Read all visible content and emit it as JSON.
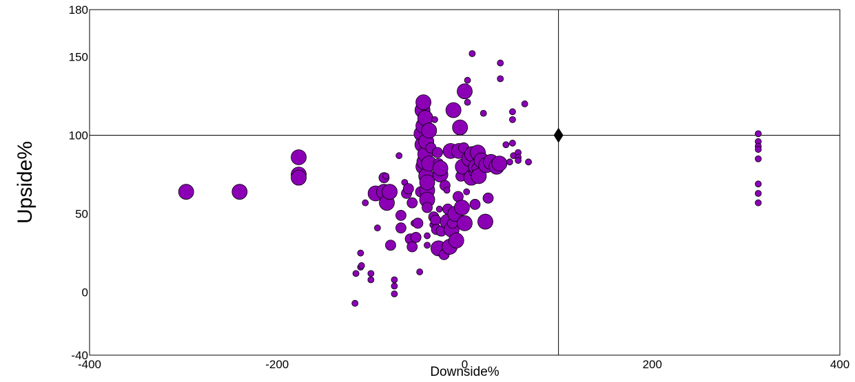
{
  "chart_data": {
    "type": "scatter",
    "xlabel": "Downside%",
    "ylabel": "Upside%",
    "xlim": [
      -400,
      400
    ],
    "ylim": [
      -40,
      180
    ],
    "xticks": [
      -400,
      -200,
      0,
      200,
      400
    ],
    "yticks": [
      -40,
      0,
      50,
      100,
      150,
      180
    ],
    "grid": false,
    "reference_lines": {
      "x": 100,
      "y": 100
    },
    "reference_marker": {
      "x": 100,
      "y": 100,
      "shape": "diamond"
    },
    "colors": {
      "point_fill": "#8b00b5",
      "point_edge": "#000000",
      "axes": "#000000",
      "marker": "#000000"
    },
    "point_fields": [
      "x",
      "y",
      "size"
    ],
    "points": [
      [
        -297,
        64,
        3
      ],
      [
        -240,
        64,
        3
      ],
      [
        -177,
        86,
        3
      ],
      [
        -177,
        75,
        3
      ],
      [
        -177,
        73,
        3
      ],
      [
        -117,
        -7,
        1
      ],
      [
        -116,
        12,
        1
      ],
      [
        -111,
        25,
        1
      ],
      [
        -111,
        16,
        1
      ],
      [
        -110,
        17,
        1
      ],
      [
        -106,
        57,
        1
      ],
      [
        -100,
        12,
        1
      ],
      [
        -100,
        8,
        1
      ],
      [
        -95,
        63,
        3
      ],
      [
        -93,
        41,
        1
      ],
      [
        -86,
        64,
        3
      ],
      [
        -86,
        73,
        2
      ],
      [
        -84,
        74,
        1
      ],
      [
        -83,
        57,
        3
      ],
      [
        -80,
        64,
        3
      ],
      [
        -79,
        30,
        2
      ],
      [
        -75,
        8,
        1
      ],
      [
        -75,
        4,
        1
      ],
      [
        -75,
        -1,
        1
      ],
      [
        -70,
        87,
        1
      ],
      [
        -68,
        49,
        2
      ],
      [
        -68,
        41,
        2
      ],
      [
        -64,
        70,
        1
      ],
      [
        -62,
        63,
        2
      ],
      [
        -60,
        66,
        2
      ],
      [
        -58,
        34,
        2
      ],
      [
        -56,
        29,
        2
      ],
      [
        -56,
        57,
        2
      ],
      [
        -54,
        44,
        1
      ],
      [
        -52,
        35,
        2
      ],
      [
        -50,
        44,
        2
      ],
      [
        -48,
        13,
        1
      ],
      [
        -47,
        64,
        2
      ],
      [
        -46,
        101,
        3
      ],
      [
        -45,
        94,
        3
      ],
      [
        -45,
        116,
        3
      ],
      [
        -44,
        80,
        3
      ],
      [
        -44,
        106,
        3
      ],
      [
        -44,
        121,
        3
      ],
      [
        -43,
        83,
        3
      ],
      [
        -42,
        111,
        3
      ],
      [
        -42,
        88,
        3
      ],
      [
        -41,
        96,
        3
      ],
      [
        -41,
        74,
        3
      ],
      [
        -40,
        65,
        3
      ],
      [
        -40,
        59,
        3
      ],
      [
        -40,
        54,
        2
      ],
      [
        -40,
        70,
        3
      ],
      [
        -40,
        36,
        1
      ],
      [
        -40,
        30,
        1
      ],
      [
        -38,
        103,
        3
      ],
      [
        -38,
        82,
        3
      ],
      [
        -36,
        92,
        2
      ],
      [
        -34,
        43,
        1
      ],
      [
        -33,
        48,
        2
      ],
      [
        -32,
        110,
        1
      ],
      [
        -31,
        46,
        2
      ],
      [
        -30,
        40,
        2
      ],
      [
        -29,
        89,
        2
      ],
      [
        -28,
        28,
        3
      ],
      [
        -28,
        82,
        2
      ],
      [
        -27,
        53,
        1
      ],
      [
        -26,
        75,
        3
      ],
      [
        -26,
        79,
        3
      ],
      [
        -25,
        39,
        2
      ],
      [
        -22,
        24,
        2
      ],
      [
        -21,
        68,
        2
      ],
      [
        -20,
        44,
        1
      ],
      [
        -19,
        65,
        1
      ],
      [
        -18,
        45,
        3
      ],
      [
        -18,
        53,
        2
      ],
      [
        -16,
        29,
        3
      ],
      [
        -15,
        90,
        3
      ],
      [
        -14,
        40,
        3
      ],
      [
        -13,
        44,
        2
      ],
      [
        -12,
        116,
        3
      ],
      [
        -10,
        50,
        3
      ],
      [
        -9,
        33,
        3
      ],
      [
        -7,
        61,
        2
      ],
      [
        -6,
        90,
        3
      ],
      [
        -5,
        105,
        3
      ],
      [
        -4,
        74,
        2
      ],
      [
        -3,
        54,
        3
      ],
      [
        -2,
        80,
        3
      ],
      [
        -1,
        92,
        2
      ],
      [
        0,
        44,
        3
      ],
      [
        0,
        128,
        3
      ],
      [
        2,
        64,
        1
      ],
      [
        3,
        135,
        1
      ],
      [
        3,
        121,
        1
      ],
      [
        5,
        85,
        3
      ],
      [
        7,
        73,
        3
      ],
      [
        8,
        88,
        3
      ],
      [
        8,
        152,
        1
      ],
      [
        10,
        77,
        2
      ],
      [
        11,
        56,
        2
      ],
      [
        12,
        80,
        3
      ],
      [
        13,
        79,
        2
      ],
      [
        14,
        89,
        3
      ],
      [
        15,
        74,
        3
      ],
      [
        18,
        84,
        3
      ],
      [
        20,
        114,
        1
      ],
      [
        22,
        45,
        3
      ],
      [
        23,
        81,
        3
      ],
      [
        25,
        60,
        2
      ],
      [
        28,
        83,
        3
      ],
      [
        34,
        80,
        3
      ],
      [
        37,
        82,
        3
      ],
      [
        38,
        146,
        1
      ],
      [
        38,
        136,
        1
      ],
      [
        44,
        94,
        1
      ],
      [
        48,
        83,
        1
      ],
      [
        51,
        95,
        1
      ],
      [
        51,
        115,
        1
      ],
      [
        51,
        110,
        1
      ],
      [
        52,
        87,
        1
      ],
      [
        57,
        89,
        1
      ],
      [
        57,
        86,
        1
      ],
      [
        57,
        84,
        1
      ],
      [
        64,
        120,
        1
      ],
      [
        68,
        83,
        1
      ],
      [
        313,
        101,
        1
      ],
      [
        313,
        96,
        1
      ],
      [
        313,
        93,
        1
      ],
      [
        313,
        91,
        1
      ],
      [
        313,
        85,
        1
      ],
      [
        313,
        69,
        1
      ],
      [
        313,
        63,
        1
      ],
      [
        313,
        57,
        1
      ]
    ]
  }
}
